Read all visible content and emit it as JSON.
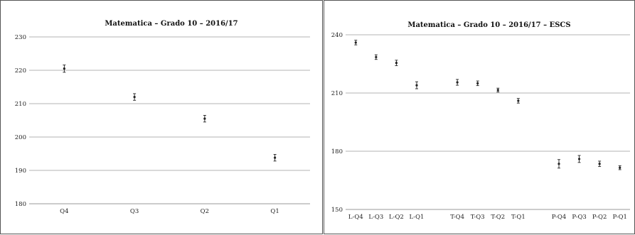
{
  "chart_data": [
    {
      "type": "scatter",
      "title": "Matematica – Grado 10 – 2016/17",
      "xlabel": "",
      "ylabel": "",
      "grid": true,
      "ylim": [
        180,
        230
      ],
      "yticks": [
        180,
        190,
        200,
        210,
        220,
        230
      ],
      "categories": [
        "Q4",
        "Q3",
        "Q2",
        "Q1"
      ],
      "values": [
        220.5,
        212.0,
        205.5,
        193.8
      ],
      "error": [
        1.1,
        1.0,
        1.0,
        1.0
      ]
    },
    {
      "type": "scatter",
      "title": "Matematica – Grado 10 –  2016/17 – ESCS",
      "xlabel": "",
      "ylabel": "",
      "grid": true,
      "ylim": [
        150,
        240
      ],
      "yticks": [
        150,
        180,
        210,
        240
      ],
      "categories": [
        "L-Q4",
        "L-Q3",
        "L-Q2",
        "L-Q1",
        "",
        "T-Q4",
        "T-Q3",
        "T-Q2",
        "T-Q1",
        "",
        "P-Q4",
        "P-Q3",
        "P-Q2",
        "P-Q1"
      ],
      "values": [
        236.0,
        228.5,
        225.5,
        214.0,
        null,
        215.5,
        215.0,
        211.5,
        206.0,
        null,
        173.5,
        176.0,
        173.5,
        171.5
      ],
      "error": [
        1.2,
        1.2,
        1.4,
        1.8,
        null,
        1.5,
        1.2,
        1.0,
        1.2,
        null,
        2.2,
        1.8,
        1.4,
        1.0
      ]
    }
  ]
}
